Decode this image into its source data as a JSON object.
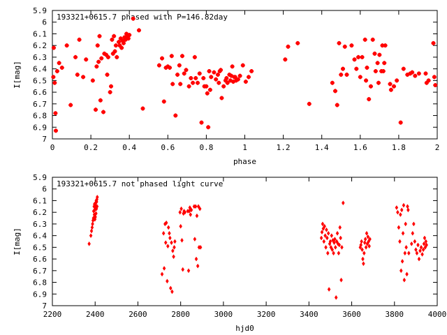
{
  "chart_data": [
    {
      "type": "scatter",
      "title": "193321+0615.7 phased with P=146.82day",
      "xlabel": "phase",
      "ylabel": "I[mag]",
      "xlim": [
        0,
        2
      ],
      "ylim": [
        7,
        5.9
      ],
      "y_inverted": true,
      "xticks": [
        0,
        0.2,
        0.4,
        0.6,
        0.8,
        1,
        1.2,
        1.4,
        1.6,
        1.8,
        2
      ],
      "xtick_labels": [
        "0",
        "0.2",
        "0.4",
        "0.6",
        "0.8",
        "1",
        "1.2",
        "1.4",
        "1.6",
        "1.8",
        "2"
      ],
      "yticks": [
        5.9,
        6,
        6.1,
        6.2,
        6.3,
        6.4,
        6.5,
        6.6,
        6.7,
        6.8,
        6.9,
        7
      ],
      "ytick_labels": [
        "5.9",
        "6",
        "6.1",
        "6.2",
        "6.3",
        "6.4",
        "6.5",
        "6.6",
        "6.7",
        "6.8",
        "6.9",
        "7"
      ],
      "grid": false,
      "marker_color": "#ff0000",
      "points": [
        [
          0.005,
          6.47
        ],
        [
          0.007,
          6.22
        ],
        [
          0.012,
          6.52
        ],
        [
          0.016,
          6.78
        ],
        [
          0.018,
          6.93
        ],
        [
          0.025,
          6.42
        ],
        [
          0.035,
          6.35
        ],
        [
          0.05,
          6.39
        ],
        [
          0.075,
          6.2
        ],
        [
          0.095,
          6.71
        ],
        [
          0.12,
          6.3
        ],
        [
          0.13,
          6.45
        ],
        [
          0.14,
          6.15
        ],
        [
          0.16,
          6.47
        ],
        [
          0.175,
          6.32
        ],
        [
          0.21,
          6.5
        ],
        [
          0.225,
          6.75
        ],
        [
          0.23,
          6.38
        ],
        [
          0.235,
          6.2
        ],
        [
          0.24,
          6.34
        ],
        [
          0.245,
          6.12
        ],
        [
          0.25,
          6.67
        ],
        [
          0.255,
          6.31
        ],
        [
          0.265,
          6.77
        ],
        [
          0.27,
          6.27
        ],
        [
          0.28,
          6.28
        ],
        [
          0.285,
          6.45
        ],
        [
          0.29,
          6.3
        ],
        [
          0.3,
          6.6
        ],
        [
          0.305,
          6.55
        ],
        [
          0.31,
          6.15
        ],
        [
          0.315,
          6.27
        ],
        [
          0.32,
          6.12
        ],
        [
          0.325,
          6.25
        ],
        [
          0.33,
          6.2
        ],
        [
          0.335,
          6.3
        ],
        [
          0.345,
          6.17
        ],
        [
          0.35,
          6.2
        ],
        [
          0.355,
          6.14
        ],
        [
          0.36,
          6.22
        ],
        [
          0.365,
          6.16
        ],
        [
          0.37,
          6.18
        ],
        [
          0.375,
          6.13
        ],
        [
          0.38,
          6.15
        ],
        [
          0.385,
          6.1
        ],
        [
          0.39,
          6.12
        ],
        [
          0.395,
          6.14
        ],
        [
          0.4,
          6.11
        ],
        [
          0.42,
          5.97
        ],
        [
          0.45,
          6.07
        ],
        [
          0.47,
          6.74
        ],
        [
          0.555,
          6.37
        ],
        [
          0.57,
          6.31
        ],
        [
          0.58,
          6.68
        ],
        [
          0.59,
          6.39
        ],
        [
          0.6,
          6.38
        ],
        [
          0.61,
          6.39
        ],
        [
          0.62,
          6.29
        ],
        [
          0.625,
          6.53
        ],
        [
          0.64,
          6.8
        ],
        [
          0.65,
          6.45
        ],
        [
          0.66,
          6.37
        ],
        [
          0.665,
          6.53
        ],
        [
          0.675,
          6.29
        ],
        [
          0.685,
          6.44
        ],
        [
          0.695,
          6.41
        ],
        [
          0.71,
          6.55
        ],
        [
          0.72,
          6.48
        ],
        [
          0.73,
          6.52
        ],
        [
          0.74,
          6.3
        ],
        [
          0.745,
          6.48
        ],
        [
          0.755,
          6.52
        ],
        [
          0.765,
          6.44
        ],
        [
          0.775,
          6.86
        ],
        [
          0.785,
          6.48
        ],
        [
          0.79,
          6.55
        ],
        [
          0.8,
          6.55
        ],
        [
          0.805,
          6.61
        ],
        [
          0.81,
          6.9
        ],
        [
          0.815,
          6.42
        ],
        [
          0.82,
          6.58
        ],
        [
          0.825,
          6.47
        ],
        [
          0.84,
          6.43
        ],
        [
          0.85,
          6.49
        ],
        [
          0.86,
          6.45
        ],
        [
          0.865,
          6.52
        ],
        [
          0.87,
          6.42
        ],
        [
          0.875,
          6.41
        ],
        [
          0.88,
          6.65
        ],
        [
          0.89,
          6.55
        ],
        [
          0.9,
          6.5
        ],
        [
          0.905,
          6.48
        ],
        [
          0.91,
          6.52
        ],
        [
          0.92,
          6.45
        ],
        [
          0.925,
          6.5
        ],
        [
          0.93,
          6.46
        ],
        [
          0.935,
          6.38
        ],
        [
          0.94,
          6.51
        ],
        [
          0.945,
          6.47
        ],
        [
          0.95,
          6.47
        ],
        [
          0.955,
          6.5
        ],
        [
          0.965,
          6.49
        ],
        [
          0.975,
          6.46
        ],
        [
          0.99,
          6.37
        ],
        [
          1.005,
          6.51
        ],
        [
          1.02,
          6.47
        ],
        [
          1.035,
          6.42
        ],
        [
          1.21,
          6.32
        ],
        [
          1.225,
          6.21
        ],
        [
          1.275,
          6.18
        ],
        [
          1.335,
          6.7
        ],
        [
          1.455,
          6.52
        ],
        [
          1.47,
          6.59
        ],
        [
          1.48,
          6.71
        ],
        [
          1.49,
          6.18
        ],
        [
          1.5,
          6.45
        ],
        [
          1.51,
          6.4
        ],
        [
          1.52,
          6.21
        ],
        [
          1.53,
          6.45
        ],
        [
          1.555,
          6.2
        ],
        [
          1.57,
          6.32
        ],
        [
          1.58,
          6.4
        ],
        [
          1.59,
          6.3
        ],
        [
          1.6,
          6.47
        ],
        [
          1.61,
          6.3
        ],
        [
          1.625,
          6.15
        ],
        [
          1.63,
          6.5
        ],
        [
          1.635,
          6.39
        ],
        [
          1.645,
          6.66
        ],
        [
          1.655,
          6.55
        ],
        [
          1.665,
          6.15
        ],
        [
          1.675,
          6.27
        ],
        [
          1.68,
          6.42
        ],
        [
          1.69,
          6.35
        ],
        [
          1.695,
          6.52
        ],
        [
          1.7,
          6.28
        ],
        [
          1.71,
          6.42
        ],
        [
          1.715,
          6.2
        ],
        [
          1.72,
          6.42
        ],
        [
          1.725,
          6.35
        ],
        [
          1.73,
          6.2
        ],
        [
          1.755,
          6.53
        ],
        [
          1.76,
          6.58
        ],
        [
          1.775,
          6.55
        ],
        [
          1.79,
          6.5
        ],
        [
          1.81,
          6.86
        ],
        [
          1.825,
          6.4
        ],
        [
          1.845,
          6.45
        ],
        [
          1.86,
          6.44
        ],
        [
          1.87,
          6.43
        ],
        [
          1.885,
          6.46
        ],
        [
          1.905,
          6.44
        ],
        [
          1.94,
          6.44
        ],
        [
          1.945,
          6.52
        ],
        [
          1.955,
          6.5
        ],
        [
          1.98,
          6.18
        ],
        [
          1.985,
          6.47
        ],
        [
          1.99,
          6.54
        ]
      ]
    },
    {
      "type": "scatter",
      "title": "193321+0615.7 not phased light curve",
      "xlabel": "hjd0",
      "ylabel": "I[mag]",
      "xlim": [
        2200,
        4000
      ],
      "ylim": [
        7,
        5.9
      ],
      "y_inverted": true,
      "xticks": [
        2200,
        2400,
        2600,
        2800,
        3000,
        3200,
        3400,
        3600,
        3800,
        4000
      ],
      "xtick_labels": [
        "2200",
        "2400",
        "2600",
        "2800",
        "3000",
        "3200",
        "3400",
        "3600",
        "3800",
        "4000"
      ],
      "yticks": [
        5.9,
        6,
        6.1,
        6.2,
        6.3,
        6.4,
        6.5,
        6.6,
        6.7,
        6.8,
        6.9,
        7
      ],
      "ytick_labels": [
        "5.9",
        "6",
        "6.1",
        "6.2",
        "6.3",
        "6.4",
        "6.5",
        "6.6",
        "6.7",
        "6.8",
        "6.9",
        "7"
      ],
      "grid": false,
      "marker_color": "#ff0000",
      "points": [
        [
          2372,
          6.47
        ],
        [
          2380,
          6.4
        ],
        [
          2383,
          6.36
        ],
        [
          2386,
          6.33
        ],
        [
          2388,
          6.3
        ],
        [
          2390,
          6.27
        ],
        [
          2392,
          6.25
        ],
        [
          2393,
          6.19
        ],
        [
          2395,
          6.15
        ],
        [
          2396,
          6.22
        ],
        [
          2397,
          6.13
        ],
        [
          2398,
          6.18
        ],
        [
          2399,
          6.26
        ],
        [
          2400,
          6.16
        ],
        [
          2401,
          6.24
        ],
        [
          2402,
          6.12
        ],
        [
          2403,
          6.14
        ],
        [
          2404,
          6.21
        ],
        [
          2405,
          6.1
        ],
        [
          2406,
          6.17
        ],
        [
          2407,
          6.11
        ],
        [
          2408,
          6.09
        ],
        [
          2409,
          6.15
        ],
        [
          2410,
          6.07
        ],
        [
          2713,
          6.73
        ],
        [
          2720,
          6.38
        ],
        [
          2723,
          6.68
        ],
        [
          2727,
          6.3
        ],
        [
          2730,
          6.46
        ],
        [
          2733,
          6.29
        ],
        [
          2737,
          6.79
        ],
        [
          2740,
          6.49
        ],
        [
          2743,
          6.33
        ],
        [
          2747,
          6.38
        ],
        [
          2750,
          6.42
        ],
        [
          2753,
          6.85
        ],
        [
          2757,
          6.46
        ],
        [
          2760,
          6.88
        ],
        [
          2763,
          6.53
        ],
        [
          2767,
          6.58
        ],
        [
          2770,
          6.5
        ],
        [
          2773,
          6.45
        ],
        [
          2797,
          6.2
        ],
        [
          2800,
          6.32
        ],
        [
          2803,
          6.17
        ],
        [
          2806,
          6.44
        ],
        [
          2810,
          6.69
        ],
        [
          2813,
          6.21
        ],
        [
          2816,
          6.19
        ],
        [
          2820,
          6.2
        ],
        [
          2833,
          6.19
        ],
        [
          2837,
          6.7
        ],
        [
          2840,
          6.19
        ],
        [
          2843,
          6.16
        ],
        [
          2846,
          6.22
        ],
        [
          2850,
          6.18
        ],
        [
          2863,
          6.15
        ],
        [
          2866,
          6.43
        ],
        [
          2870,
          6.15
        ],
        [
          2873,
          6.6
        ],
        [
          2876,
          6.23
        ],
        [
          2880,
          6.66
        ],
        [
          2883,
          6.15
        ],
        [
          2886,
          6.5
        ],
        [
          2890,
          6.17
        ],
        [
          2893,
          6.5
        ],
        [
          3458,
          6.42
        ],
        [
          3461,
          6.37
        ],
        [
          3464,
          6.3
        ],
        [
          3467,
          6.34
        ],
        [
          3470,
          6.45
        ],
        [
          3473,
          6.32
        ],
        [
          3476,
          6.4
        ],
        [
          3479,
          6.5
        ],
        [
          3482,
          6.35
        ],
        [
          3485,
          6.42
        ],
        [
          3488,
          6.55
        ],
        [
          3491,
          6.38
        ],
        [
          3494,
          6.86
        ],
        [
          3497,
          6.47
        ],
        [
          3500,
          6.45
        ],
        [
          3503,
          6.5
        ],
        [
          3506,
          6.4
        ],
        [
          3509,
          6.52
        ],
        [
          3512,
          6.44
        ],
        [
          3515,
          6.55
        ],
        [
          3518,
          6.46
        ],
        [
          3521,
          6.43
        ],
        [
          3524,
          6.5
        ],
        [
          3527,
          6.93
        ],
        [
          3530,
          6.45
        ],
        [
          3533,
          6.38
        ],
        [
          3536,
          6.47
        ],
        [
          3539,
          6.55
        ],
        [
          3542,
          6.48
        ],
        [
          3545,
          6.33
        ],
        [
          3548,
          6.42
        ],
        [
          3551,
          6.78
        ],
        [
          3554,
          6.5
        ],
        [
          3560,
          6.12
        ],
        [
          3640,
          6.5
        ],
        [
          3643,
          6.48
        ],
        [
          3646,
          6.45
        ],
        [
          3649,
          6.52
        ],
        [
          3652,
          6.6
        ],
        [
          3655,
          6.64
        ],
        [
          3658,
          6.55
        ],
        [
          3661,
          6.46
        ],
        [
          3664,
          6.43
        ],
        [
          3667,
          6.5
        ],
        [
          3670,
          6.38
        ],
        [
          3673,
          6.47
        ],
        [
          3676,
          6.41
        ],
        [
          3679,
          6.45
        ],
        [
          3682,
          6.49
        ],
        [
          3685,
          6.43
        ],
        [
          3810,
          6.16
        ],
        [
          3815,
          6.2
        ],
        [
          3820,
          6.33
        ],
        [
          3825,
          6.45
        ],
        [
          3828,
          6.22
        ],
        [
          3831,
          6.7
        ],
        [
          3834,
          6.18
        ],
        [
          3837,
          6.62
        ],
        [
          3840,
          6.38
        ],
        [
          3843,
          6.14
        ],
        [
          3846,
          6.78
        ],
        [
          3849,
          6.55
        ],
        [
          3852,
          6.3
        ],
        [
          3855,
          6.5
        ],
        [
          3858,
          6.73
        ],
        [
          3861,
          6.15
        ],
        [
          3864,
          6.18
        ],
        [
          3867,
          6.55
        ],
        [
          3880,
          6.47
        ],
        [
          3885,
          6.38
        ],
        [
          3890,
          6.3
        ],
        [
          3895,
          6.45
        ],
        [
          3900,
          6.52
        ],
        [
          3905,
          6.55
        ],
        [
          3910,
          6.48
        ],
        [
          3915,
          6.6
        ],
        [
          3920,
          6.53
        ],
        [
          3925,
          6.5
        ],
        [
          3930,
          6.56
        ],
        [
          3935,
          6.52
        ],
        [
          3938,
          6.47
        ],
        [
          3941,
          6.42
        ],
        [
          3944,
          6.5
        ],
        [
          3947,
          6.45
        ],
        [
          3950,
          6.48
        ]
      ]
    }
  ]
}
